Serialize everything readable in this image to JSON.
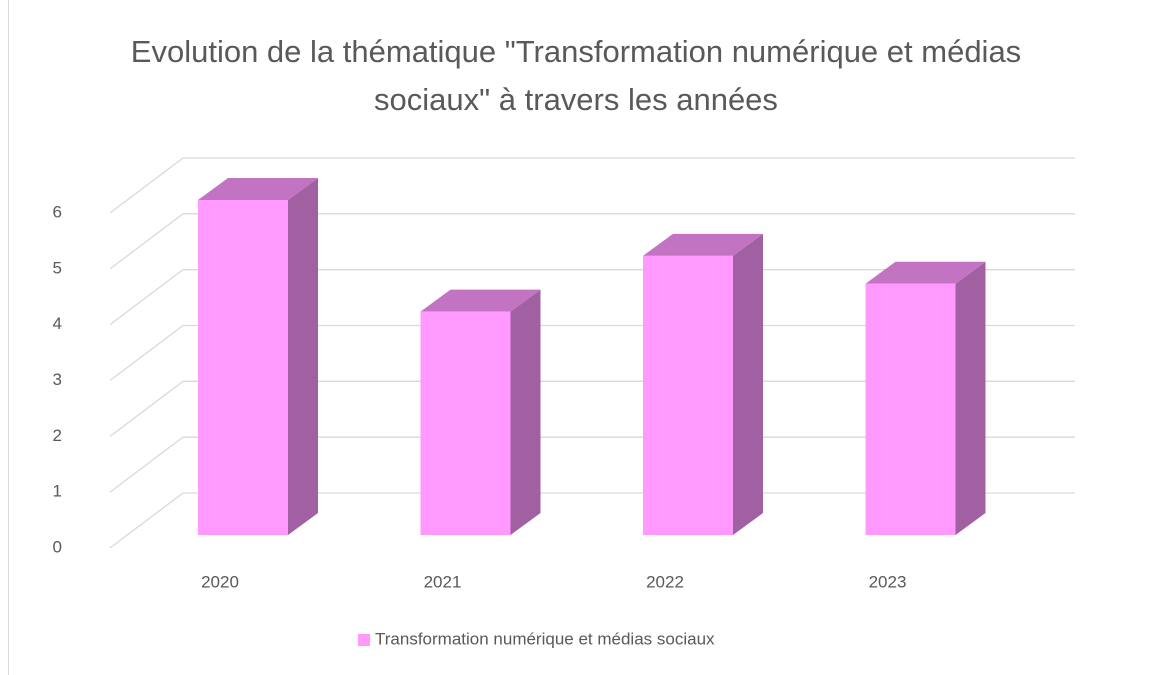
{
  "chart_data": {
    "type": "bar3d",
    "title": "Evolution de la thématique \"Transformation numérique et médias sociaux\" à travers les années",
    "categories": [
      "2020",
      "2021",
      "2022",
      "2023"
    ],
    "series": [
      {
        "name": "Transformation numérique et médias sociaux",
        "color": "#ff99ff",
        "values": [
          6,
          4,
          5,
          4.5
        ]
      }
    ],
    "ylim": [
      0,
      6
    ],
    "yticks": [
      0,
      1,
      2,
      3,
      4,
      5,
      6
    ],
    "grid": true,
    "legend": "bottom"
  }
}
